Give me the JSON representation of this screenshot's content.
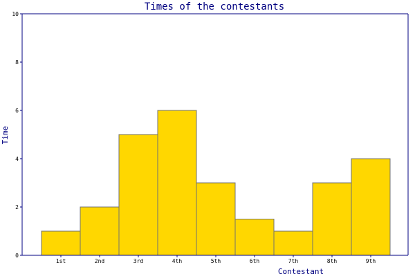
{
  "colors": {
    "bar_fill": "#ffd700",
    "bar_stroke": "#707070",
    "axis": "#000080",
    "title": "#000080"
  },
  "chart_data": {
    "type": "bar",
    "title": "Times of the contestants",
    "xlabel": "Contestant",
    "ylabel": "Time",
    "categories": [
      "1st",
      "2nd",
      "3rd",
      "4th",
      "5th",
      "6th",
      "7th",
      "8th",
      "9th"
    ],
    "values": [
      1,
      2,
      5,
      6,
      3,
      1.5,
      1,
      3,
      4
    ],
    "ylim": [
      0,
      10
    ],
    "yticks": [
      "0",
      "2",
      "4",
      "6",
      "8",
      "10"
    ],
    "grid": false,
    "legend": "none"
  }
}
